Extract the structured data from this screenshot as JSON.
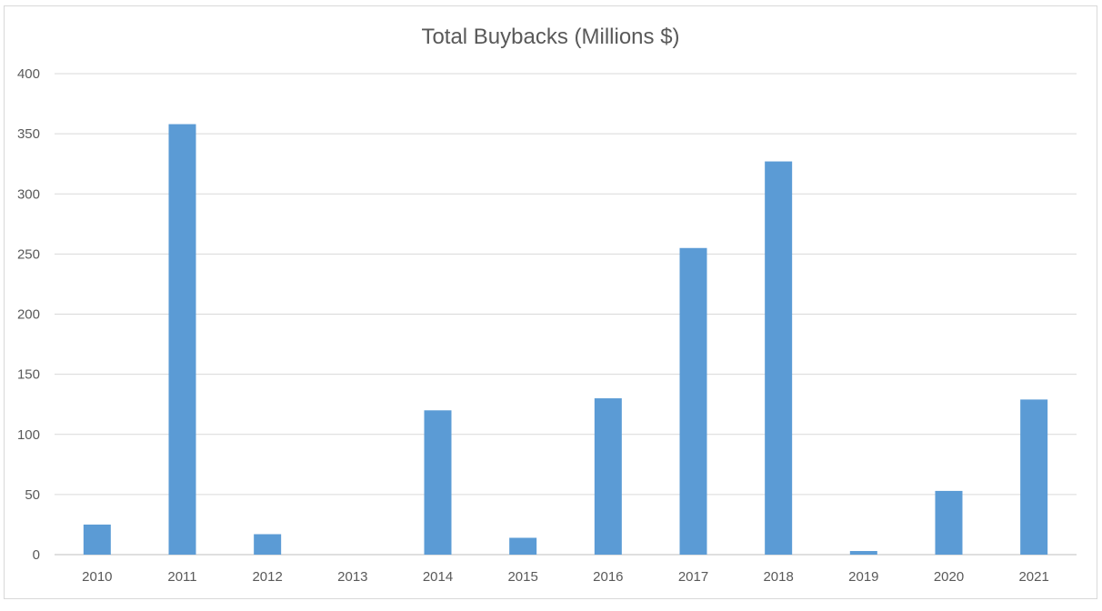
{
  "chart_data": {
    "type": "bar",
    "title": "Total Buybacks (Millions $)",
    "xlabel": "",
    "ylabel": "",
    "categories": [
      "2010",
      "2011",
      "2012",
      "2013",
      "2014",
      "2015",
      "2016",
      "2017",
      "2018",
      "2019",
      "2020",
      "2021"
    ],
    "values": [
      25,
      358,
      17,
      0,
      120,
      14,
      130,
      255,
      327,
      3,
      53,
      129
    ],
    "ylim": [
      0,
      400
    ],
    "yticks": [
      "0",
      "50",
      "100",
      "150",
      "200",
      "250",
      "300",
      "350",
      "400"
    ],
    "grid": true,
    "legend": "none",
    "colors": {
      "bar": "#5b9bd5",
      "grid": "#d9d9d9",
      "axis": "#bfbfbf",
      "text": "#595959"
    }
  }
}
